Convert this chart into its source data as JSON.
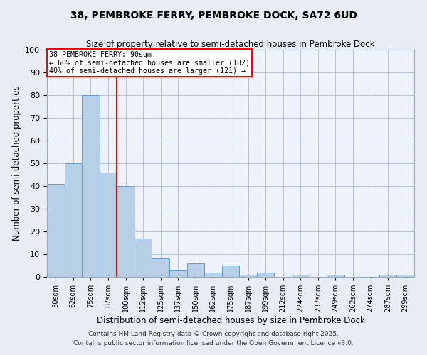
{
  "title": "38, PEMBROKE FERRY, PEMBROKE DOCK, SA72 6UD",
  "subtitle": "Size of property relative to semi-detached houses in Pembroke Dock",
  "xlabel": "Distribution of semi-detached houses by size in Pembroke Dock",
  "ylabel": "Number of semi-detached properties",
  "categories": [
    "50sqm",
    "62sqm",
    "75sqm",
    "87sqm",
    "100sqm",
    "112sqm",
    "125sqm",
    "137sqm",
    "150sqm",
    "162sqm",
    "175sqm",
    "187sqm",
    "199sqm",
    "212sqm",
    "224sqm",
    "237sqm",
    "249sqm",
    "262sqm",
    "274sqm",
    "287sqm",
    "299sqm"
  ],
  "values": [
    41,
    50,
    80,
    46,
    40,
    17,
    8,
    3,
    6,
    2,
    5,
    1,
    2,
    0,
    1,
    0,
    1,
    0,
    0,
    1,
    1
  ],
  "bar_color": "#b8cfe8",
  "bar_edge_color": "#6699cc",
  "vline_x": 3.5,
  "annotation_title": "38 PEMBROKE FERRY: 90sqm",
  "annotation_line1": "← 60% of semi-detached houses are smaller (182)",
  "annotation_line2": "40% of semi-detached houses are larger (121) →",
  "ylim": [
    0,
    100
  ],
  "yticks": [
    0,
    10,
    20,
    30,
    40,
    50,
    60,
    70,
    80,
    90,
    100
  ],
  "bg_color": "#e8ecf5",
  "plot_bg_color": "#eef2fa",
  "footer1": "Contains HM Land Registry data © Crown copyright and database right 2025.",
  "footer2": "Contains public sector information licensed under the Open Government Licence v3.0."
}
